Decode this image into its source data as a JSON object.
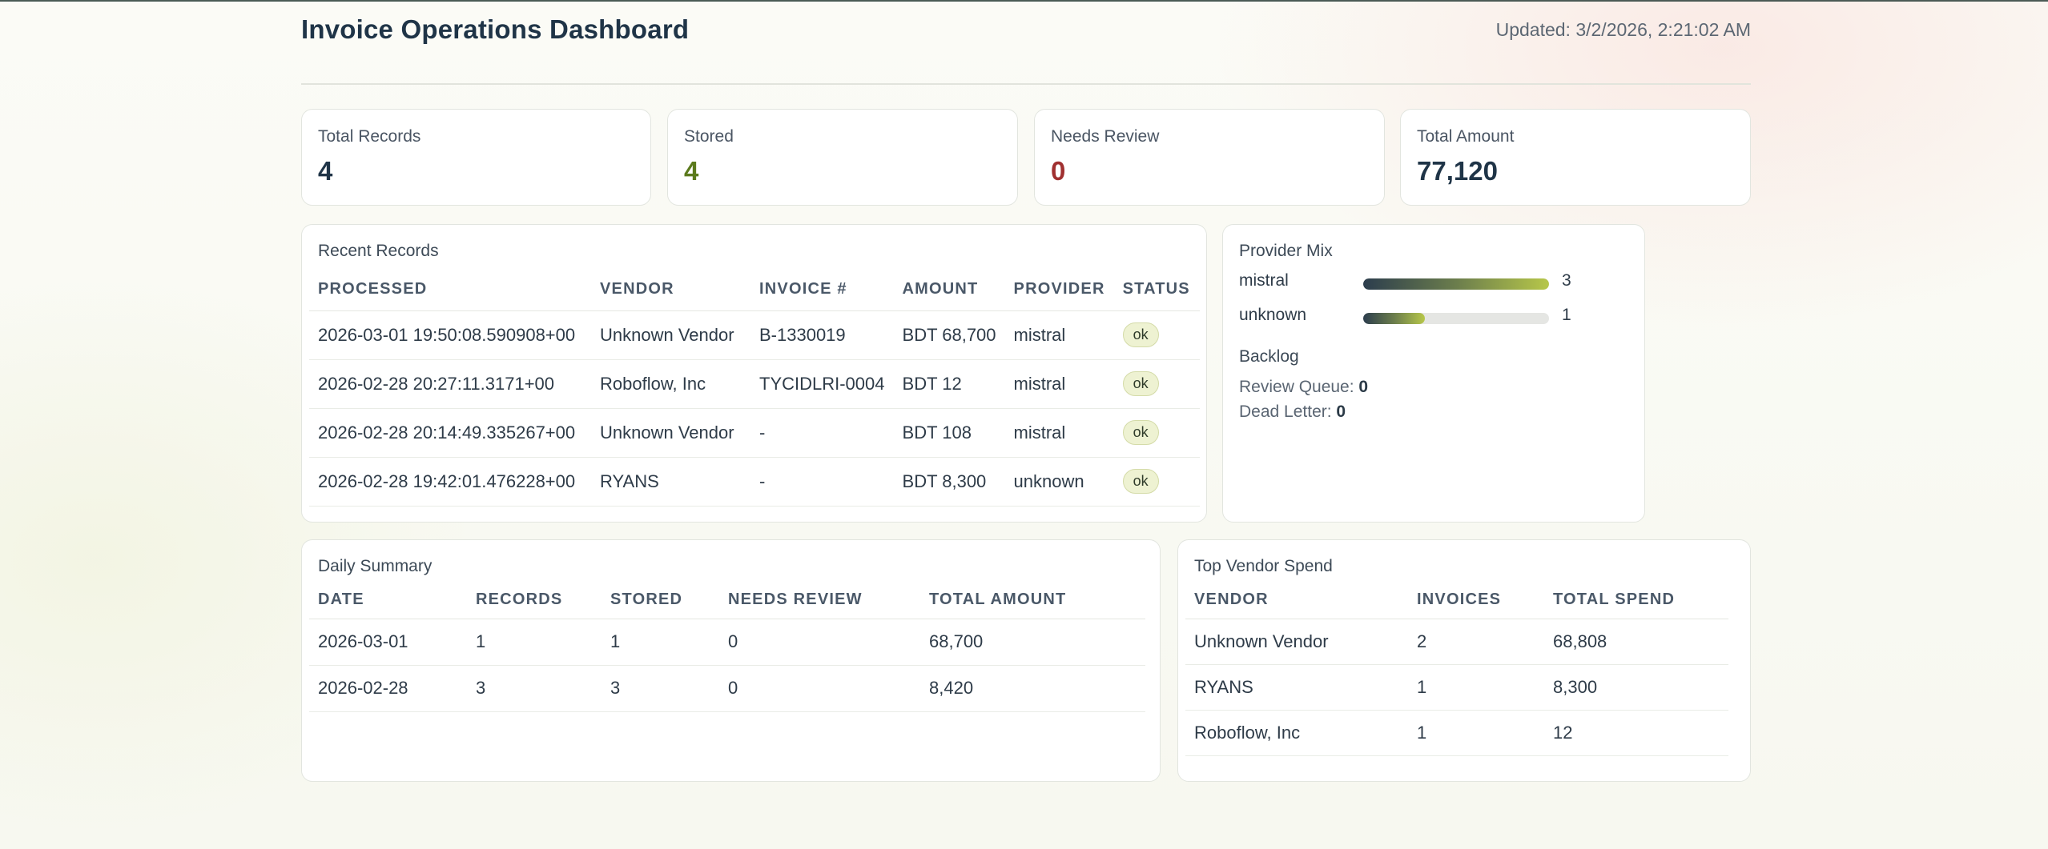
{
  "header": {
    "title": "Invoice Operations Dashboard",
    "updated": "Updated: 3/2/2026, 2:21:02 AM"
  },
  "stats": [
    {
      "label": "Total Records",
      "value": "4",
      "color": "#1f3447"
    },
    {
      "label": "Stored",
      "value": "4",
      "color": "#5b7a1c"
    },
    {
      "label": "Needs Review",
      "value": "0",
      "color": "#a03030"
    },
    {
      "label": "Total Amount",
      "value": "77,120",
      "color": "#1f3447"
    }
  ],
  "recent": {
    "title": "Recent Records",
    "columns": [
      "PROCESSED",
      "VENDOR",
      "INVOICE #",
      "AMOUNT",
      "PROVIDER",
      "STATUS"
    ],
    "rows": [
      {
        "processed": "2026-03-01 19:50:08.590908+00",
        "vendor": "Unknown Vendor",
        "invoice": "B-1330019",
        "amount": "BDT 68,700",
        "provider": "mistral",
        "status": "ok"
      },
      {
        "processed": "2026-02-28 20:27:11.3171+00",
        "vendor": "Roboflow, Inc",
        "invoice": "TYCIDLRI-0004",
        "amount": "BDT 12",
        "provider": "mistral",
        "status": "ok"
      },
      {
        "processed": "2026-02-28 20:14:49.335267+00",
        "vendor": "Unknown Vendor",
        "invoice": "-",
        "amount": "BDT 108",
        "provider": "mistral",
        "status": "ok"
      },
      {
        "processed": "2026-02-28 19:42:01.476228+00",
        "vendor": "RYANS",
        "invoice": "-",
        "amount": "BDT 8,300",
        "provider": "unknown",
        "status": "ok"
      }
    ]
  },
  "provider_mix": {
    "title": "Provider Mix",
    "items": [
      {
        "label": "mistral",
        "count": "3",
        "share": 1.0
      },
      {
        "label": "unknown",
        "count": "1",
        "share": 0.33
      }
    ],
    "backlog_title": "Backlog",
    "review_queue_label": "Review Queue:",
    "review_queue_value": "0",
    "dead_letter_label": "Dead Letter:",
    "dead_letter_value": "0"
  },
  "daily": {
    "title": "Daily Summary",
    "columns": [
      "DATE",
      "RECORDS",
      "STORED",
      "NEEDS REVIEW",
      "TOTAL AMOUNT"
    ],
    "rows": [
      {
        "date": "2026-03-01",
        "records": "1",
        "stored": "1",
        "review": "0",
        "total": "68,700"
      },
      {
        "date": "2026-02-28",
        "records": "3",
        "stored": "3",
        "review": "0",
        "total": "8,420"
      }
    ]
  },
  "vendors": {
    "title": "Top Vendor Spend",
    "columns": [
      "VENDOR",
      "INVOICES",
      "TOTAL SPEND"
    ],
    "rows": [
      {
        "vendor": "Unknown Vendor",
        "invoices": "2",
        "spend": "68,808"
      },
      {
        "vendor": "RYANS",
        "invoices": "1",
        "spend": "8,300"
      },
      {
        "vendor": "Roboflow, Inc",
        "invoices": "1",
        "spend": "12"
      }
    ]
  }
}
